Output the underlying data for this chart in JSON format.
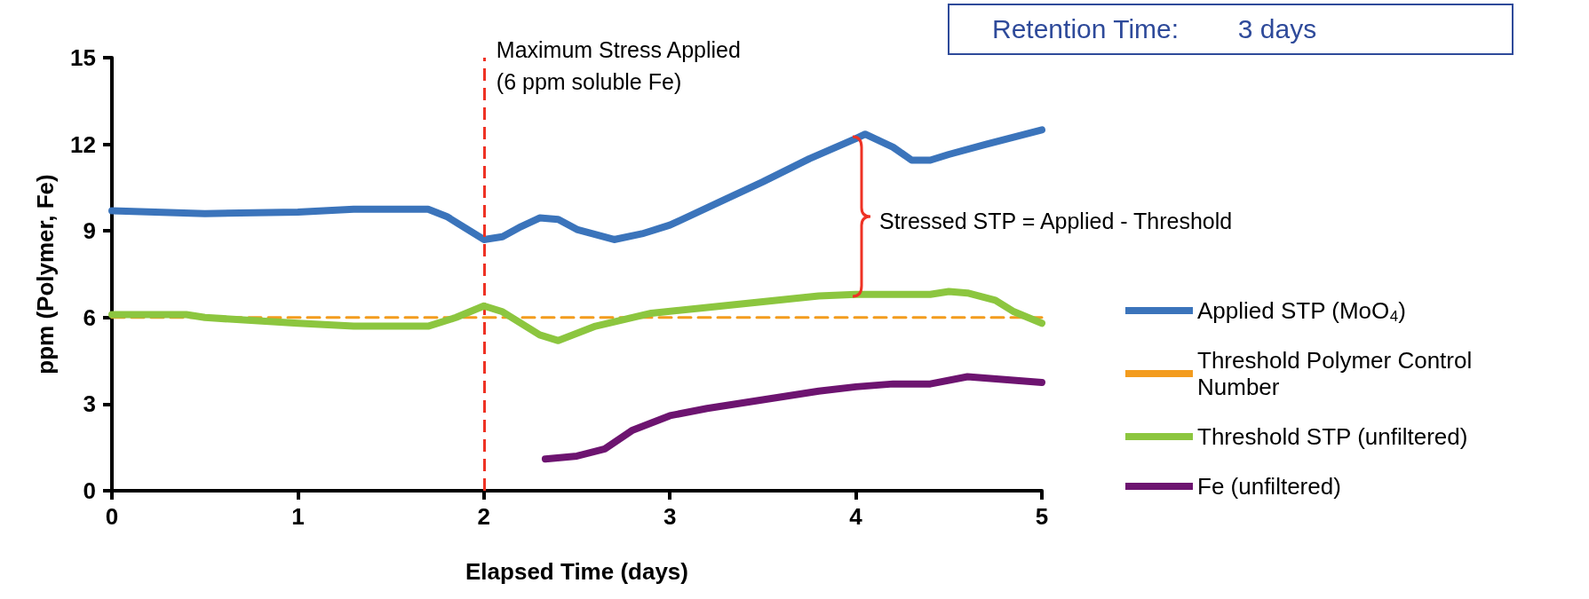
{
  "chart_data": {
    "type": "line",
    "xlabel": "Elapsed Time (days)",
    "ylabel": "ppm (Polymer, Fe)",
    "xlim": [
      0,
      5
    ],
    "xticks": [
      0,
      1,
      2,
      3,
      4,
      5
    ],
    "ylim": [
      0,
      15
    ],
    "yticks": [
      0,
      3,
      6,
      9,
      12,
      15
    ],
    "grid": false,
    "legend": "right",
    "marker": "none",
    "series": [
      {
        "name": "Applied STP (MoO$_{4}$)",
        "color": "#3b74bb",
        "x": [
          0,
          0.5,
          1,
          1.3,
          1.7,
          1.8,
          2,
          2.1,
          2.2,
          2.3,
          2.4,
          2.5,
          2.7,
          2.85,
          3,
          3.3,
          3.5,
          3.75,
          4,
          4.05,
          4.2,
          4.3,
          4.4,
          4.5,
          4.7,
          5
        ],
        "values": [
          9.7,
          9.6,
          9.65,
          9.75,
          9.75,
          9.5,
          8.7,
          8.8,
          9.15,
          9.45,
          9.4,
          9.05,
          8.7,
          8.9,
          9.2,
          10.1,
          10.7,
          11.5,
          12.2,
          12.35,
          11.9,
          11.45,
          11.45,
          11.65,
          12,
          12.5
        ]
      },
      {
        "name": "Threshold Polymer Control Number",
        "color": "#f39c1e",
        "line_style": "dashed",
        "x": [
          0,
          5
        ],
        "values": [
          6,
          6
        ]
      },
      {
        "name": "Threshold STP (unfiltered)",
        "color": "#8cc63f",
        "x": [
          0,
          0.4,
          0.5,
          1,
          1.3,
          1.7,
          1.85,
          2,
          2.1,
          2.3,
          2.4,
          2.6,
          2.9,
          3.2,
          3.5,
          3.8,
          4,
          4.4,
          4.5,
          4.6,
          4.75,
          4.85,
          5
        ],
        "values": [
          6.1,
          6.1,
          6,
          5.8,
          5.7,
          5.7,
          6,
          6.4,
          6.2,
          5.4,
          5.2,
          5.7,
          6.15,
          6.35,
          6.55,
          6.75,
          6.8,
          6.8,
          6.9,
          6.85,
          6.6,
          6.2,
          5.8
        ]
      },
      {
        "name": "Fe (unfiltered)",
        "color": "#6d1470",
        "x": [
          2.33,
          2.5,
          2.65,
          2.8,
          3,
          3.2,
          3.5,
          3.8,
          4,
          4.2,
          4.4,
          4.6,
          4.8,
          5
        ],
        "values": [
          1.1,
          1.2,
          1.45,
          2.1,
          2.6,
          2.85,
          3.15,
          3.45,
          3.6,
          3.7,
          3.7,
          3.95,
          3.85,
          3.75
        ]
      }
    ],
    "ref_lines": [
      {
        "axis": "x",
        "value": 2,
        "label": "Maximum Stress Applied\n(6 ppm soluble Fe)",
        "color": "#ee3224",
        "line_style": "dashed"
      }
    ],
    "annotations": [
      "Stressed STP = Applied - Threshold",
      "Retention Time:        3 days"
    ]
  }
}
